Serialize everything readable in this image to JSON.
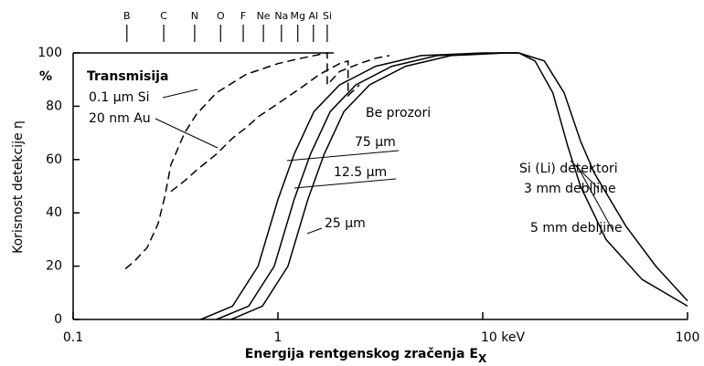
{
  "chart_data": {
    "type": "line",
    "x_label": "Energija rentgenskog zračenja E",
    "x_label_sub": "X",
    "y_label": "Korisnost detekcije η",
    "y_unit": "%",
    "xlog": true,
    "xlim": [
      0.1,
      100
    ],
    "xticks": [
      0.1,
      1,
      {
        "value": 10,
        "label": "10 keV"
      },
      100
    ],
    "ylim": [
      0,
      100
    ],
    "yticks": [
      0,
      20,
      40,
      60,
      80,
      100
    ],
    "top_ticks": [
      {
        "value": 0.183,
        "label": "B"
      },
      {
        "value": 0.277,
        "label": "C"
      },
      {
        "value": 0.392,
        "label": "N"
      },
      {
        "value": 0.525,
        "label": "O"
      },
      {
        "value": 0.677,
        "label": "F"
      },
      {
        "value": 0.849,
        "label": "Ne"
      },
      {
        "value": 1.04,
        "label": "Na"
      },
      {
        "value": 1.25,
        "label": "Mg"
      },
      {
        "value": 1.49,
        "label": "Al"
      },
      {
        "value": 1.74,
        "label": "Si"
      }
    ],
    "annotations": [
      "Transmisija",
      "0.1 µm Si",
      "20 nm Au",
      "Be prozori",
      "75 µm",
      "12.5 µm",
      "25 µm",
      "Si (Li) detektori",
      "3 mm debljine",
      "5 mm debljine"
    ],
    "series": [
      {
        "color": "#000000",
        "dash": true,
        "x": [
          0.18,
          0.2,
          0.23,
          0.26,
          0.28,
          0.3,
          0.35,
          0.4,
          0.5,
          0.7,
          1.0,
          1.3,
          1.74,
          1.74,
          2.0,
          2.5,
          3.0,
          3.5
        ],
        "values": [
          19,
          22,
          27,
          36,
          46,
          58,
          70,
          77,
          85,
          92,
          96,
          98,
          100,
          88,
          93,
          96,
          98,
          99
        ]
      },
      {
        "color": "#000000",
        "dash": true,
        "x": [
          0.3,
          0.35,
          0.4,
          0.5,
          0.6,
          0.7,
          0.8,
          1.0,
          1.3,
          1.6,
          2.0,
          2.2,
          2.2,
          2.5
        ],
        "values": [
          48,
          52,
          56,
          62,
          68,
          72,
          76,
          81,
          87,
          92,
          96,
          97,
          84,
          88
        ]
      },
      {
        "color": "#000000",
        "dash": false,
        "x": [
          0.42,
          0.6,
          0.8,
          1.0,
          1.2,
          1.5,
          2.0,
          3.0,
          5.0,
          10,
          15
        ],
        "values": [
          0,
          5,
          20,
          45,
          62,
          78,
          88,
          95,
          99,
          100,
          100
        ]
      },
      {
        "color": "#000000",
        "dash": false,
        "x": [
          0.5,
          0.72,
          0.96,
          1.2,
          1.44,
          1.8,
          2.4,
          3.6,
          6.0,
          12,
          15
        ],
        "values": [
          0,
          5,
          20,
          45,
          62,
          78,
          88,
          95,
          99,
          100,
          100
        ]
      },
      {
        "color": "#000000",
        "dash": false,
        "x": [
          0.59,
          0.84,
          1.12,
          1.4,
          1.68,
          2.1,
          2.8,
          4.2,
          7.0,
          13,
          15
        ],
        "values": [
          0,
          5,
          20,
          45,
          62,
          78,
          88,
          95,
          99,
          100,
          100
        ]
      },
      {
        "color": "#000000",
        "dash": false,
        "x": [
          15,
          18,
          22,
          26,
          30,
          40,
          60,
          100
        ],
        "values": [
          100,
          97,
          85,
          65,
          50,
          30,
          15,
          5
        ]
      },
      {
        "color": "#000000",
        "dash": false,
        "x": [
          15,
          20,
          25,
          30,
          35,
          50,
          70,
          100
        ],
        "values": [
          100,
          97,
          85,
          67,
          55,
          35,
          20,
          7
        ]
      }
    ]
  }
}
